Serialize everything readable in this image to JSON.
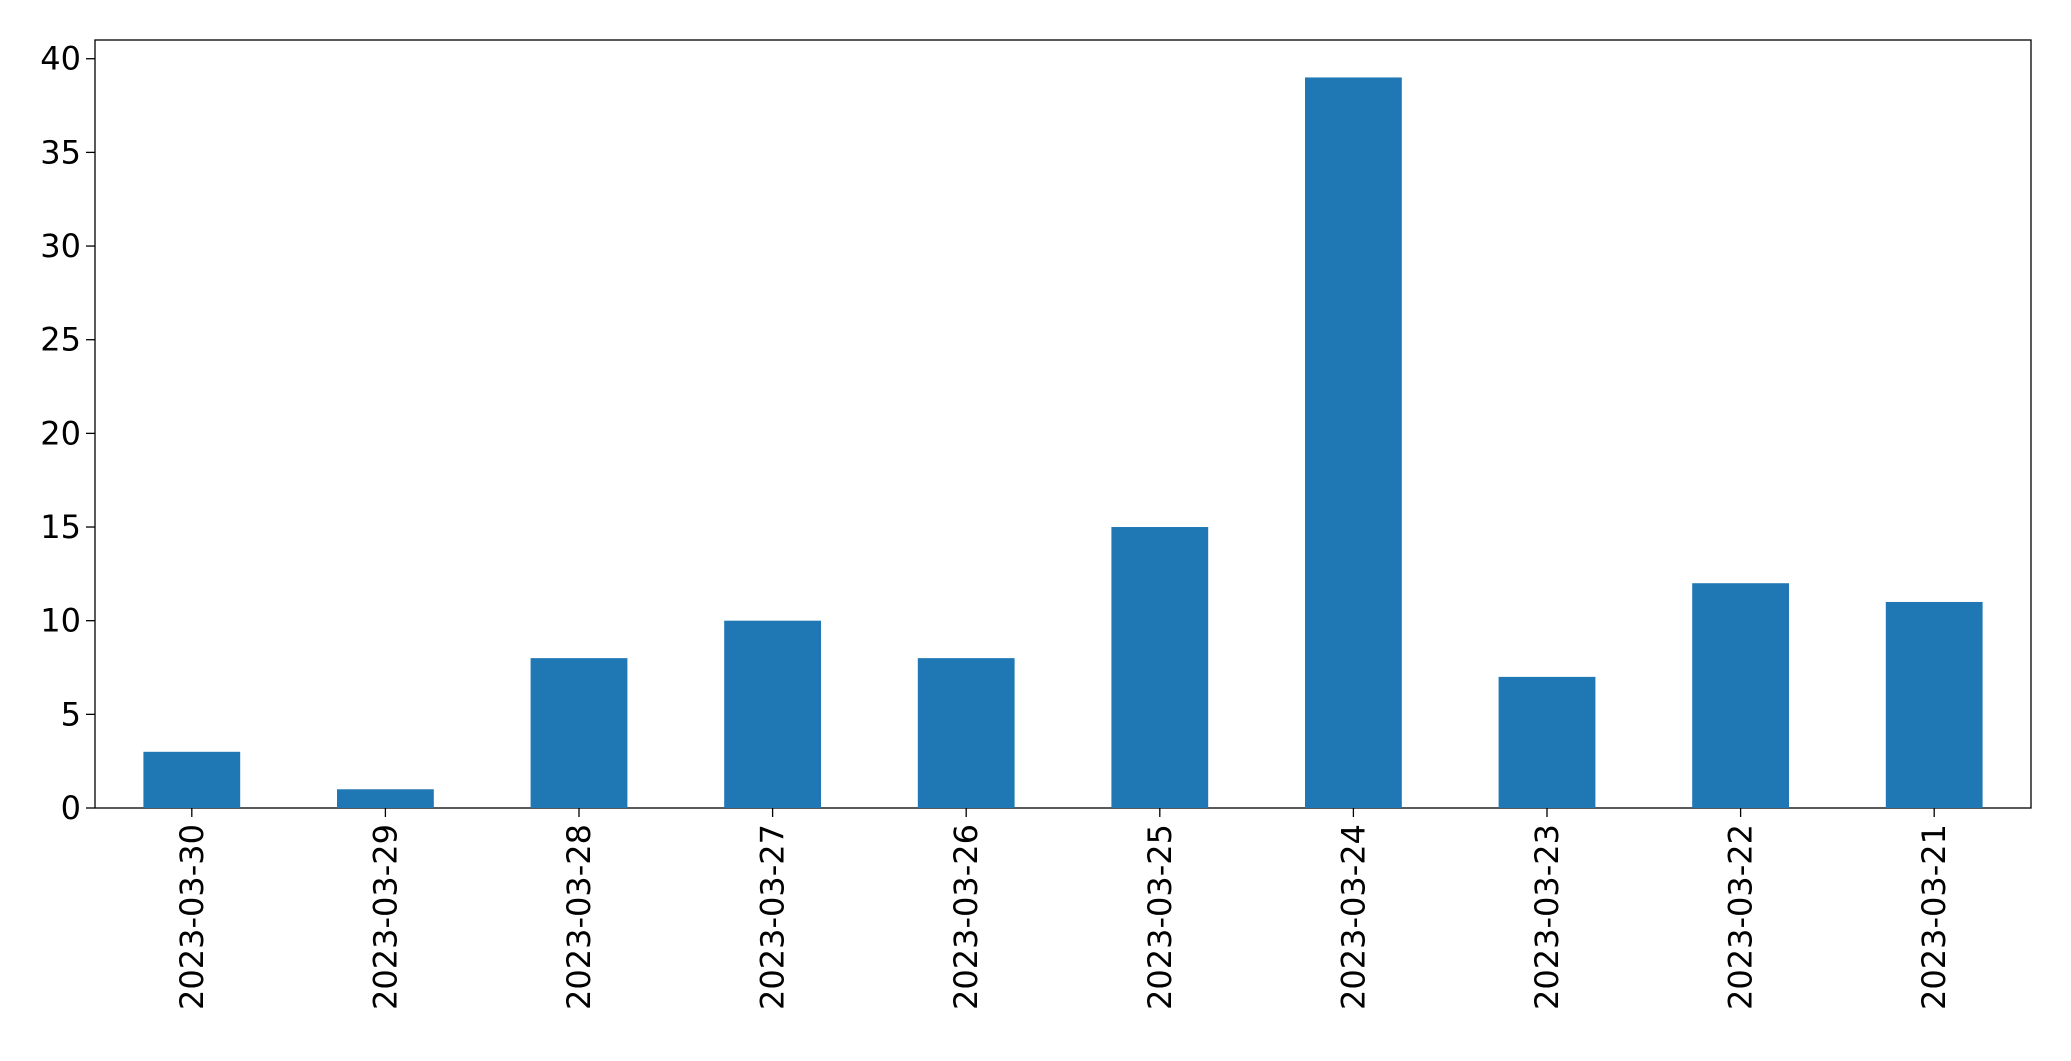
{
  "chart_data": {
    "type": "bar",
    "categories": [
      "2023-03-30",
      "2023-03-29",
      "2023-03-28",
      "2023-03-27",
      "2023-03-26",
      "2023-03-25",
      "2023-03-24",
      "2023-03-23",
      "2023-03-22",
      "2023-03-21"
    ],
    "values": [
      3,
      1,
      8,
      10,
      8,
      15,
      39,
      7,
      12,
      11
    ],
    "color": "#1f77b4",
    "ylim": [
      0,
      41
    ],
    "yticks": [
      0,
      5,
      10,
      15,
      20,
      25,
      30,
      35,
      40
    ],
    "grid": false
  }
}
